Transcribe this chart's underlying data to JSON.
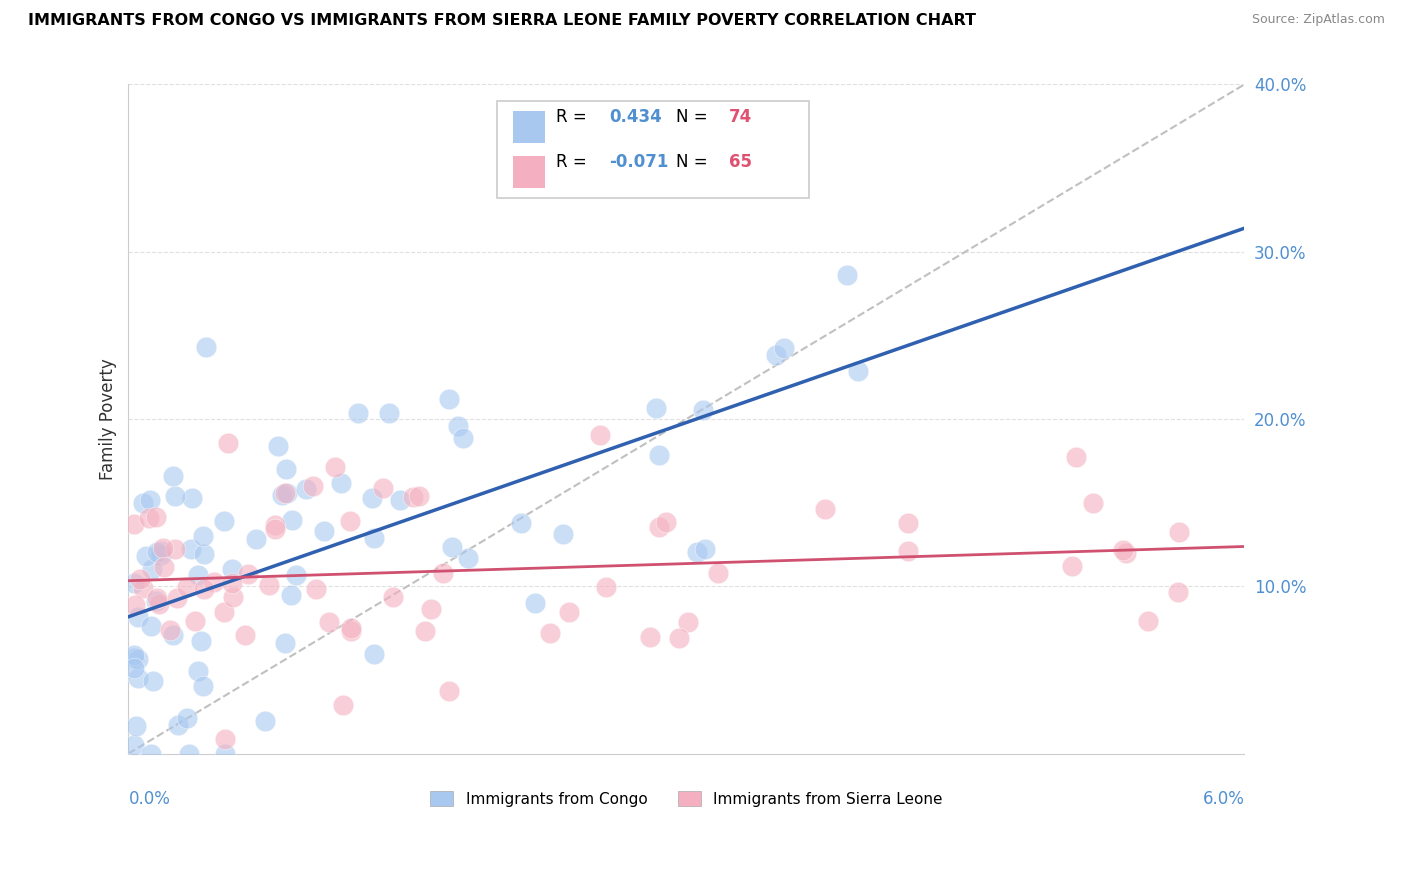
{
  "title": "IMMIGRANTS FROM CONGO VS IMMIGRANTS FROM SIERRA LEONE FAMILY POVERTY CORRELATION CHART",
  "source": "Source: ZipAtlas.com",
  "ylabel": "Family Poverty",
  "legend_label1": "Immigrants from Congo",
  "legend_label2": "Immigrants from Sierra Leone",
  "r1": "0.434",
  "n1": "74",
  "r2": "-0.071",
  "n2": "65",
  "color_congo": "#a8c8f0",
  "color_sierra": "#f4b0c0",
  "color_trendline_congo": "#3060b0",
  "color_trendline_sierra": "#d05070",
  "color_dashed": "#c0c0c0",
  "color_r": "#5090d0",
  "color_n": "#e05070",
  "xlim": [
    0.0,
    0.06
  ],
  "ylim": [
    0.0,
    0.4
  ]
}
